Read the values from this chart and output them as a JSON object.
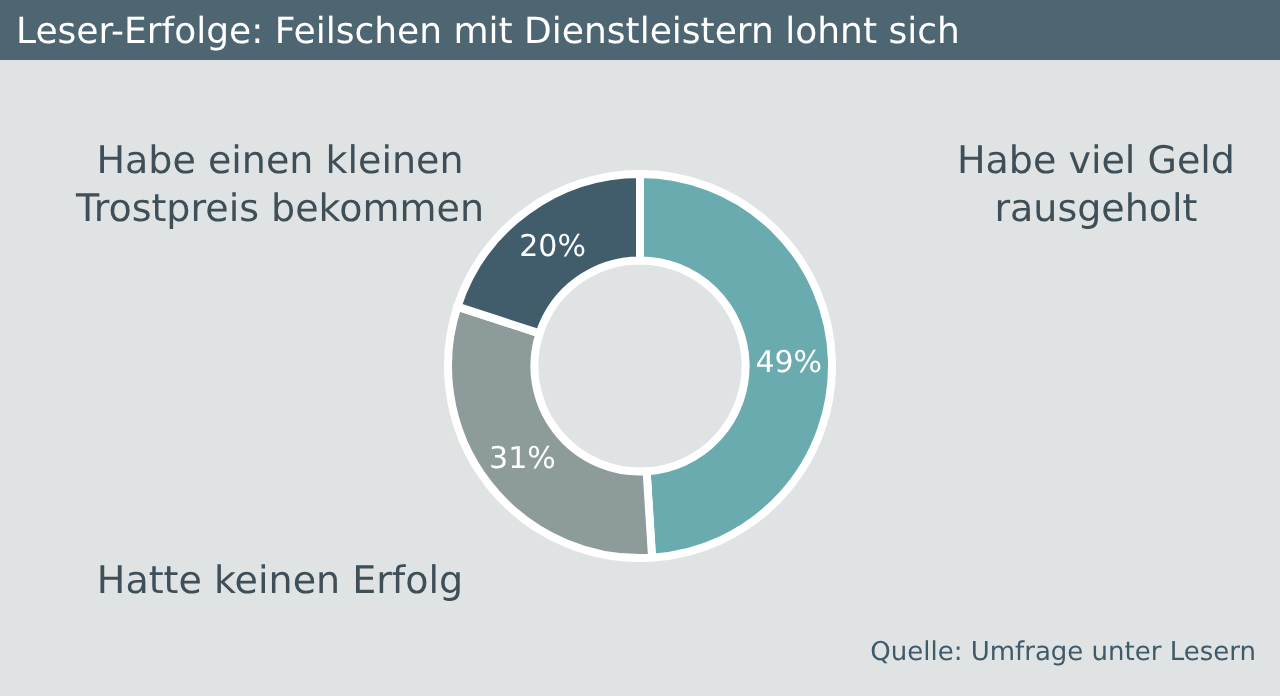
{
  "chart_data": {
    "type": "donut",
    "title": "Leser-Erfolge: Feilschen mit Dienstleistern lohnt sich",
    "categories": [
      "Habe viel Geld rausgeholt",
      "Hatte keinen Erfolg",
      "Habe einen kleinen Trostpreis bekommen"
    ],
    "values": [
      49,
      31,
      20
    ],
    "colors": [
      "#6aabb0",
      "#8e9b9b",
      "#415c6a"
    ],
    "value_labels": [
      "49%",
      "31%",
      "20%"
    ],
    "annotations": [
      "Quelle: Umfrage unter Lesern"
    ]
  }
}
